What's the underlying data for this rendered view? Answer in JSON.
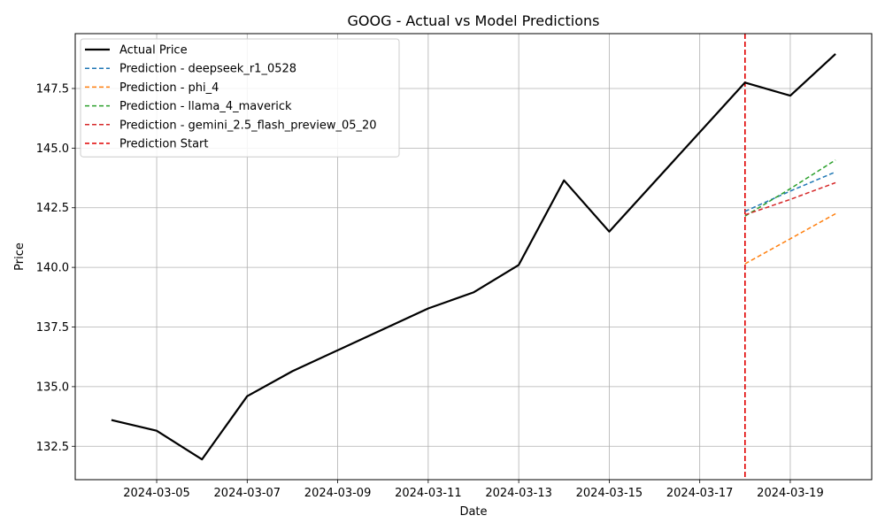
{
  "chart_data": {
    "type": "line",
    "title": "GOOG - Actual vs Model Predictions",
    "xlabel": "Date",
    "ylabel": "Price",
    "x_ticks": [
      "2024-03-05",
      "2024-03-07",
      "2024-03-09",
      "2024-03-11",
      "2024-03-13",
      "2024-03-15",
      "2024-03-17",
      "2024-03-19"
    ],
    "y_ticks": [
      "132.5",
      "135.0",
      "137.5",
      "140.0",
      "142.5",
      "145.0",
      "147.5"
    ],
    "xlim": [
      "2024-03-03",
      "2024-03-20"
    ],
    "ylim": [
      131.1,
      149.8
    ],
    "grid": true,
    "legend_position": "top-left",
    "series": [
      {
        "name": "Actual Price",
        "color": "#000000",
        "style": "solid",
        "x": [
          "2024-03-04",
          "2024-03-05",
          "2024-03-06",
          "2024-03-07",
          "2024-03-08",
          "2024-03-11",
          "2024-03-12",
          "2024-03-13",
          "2024-03-14",
          "2024-03-15",
          "2024-03-18",
          "2024-03-19",
          "2024-03-20"
        ],
        "values": [
          133.6,
          133.15,
          131.95,
          134.6,
          135.65,
          138.28,
          138.95,
          140.1,
          143.65,
          141.5,
          147.75,
          147.2,
          148.95
        ]
      },
      {
        "name": "Prediction - deepseek_r1_0528",
        "color": "#1f77b4",
        "style": "dashed",
        "x": [
          "2024-03-18",
          "2024-03-19",
          "2024-03-20"
        ],
        "values": [
          142.35,
          143.2,
          144.0
        ]
      },
      {
        "name": "Prediction - phi_4",
        "color": "#ff7f0e",
        "style": "dashed",
        "x": [
          "2024-03-18",
          "2024-03-19",
          "2024-03-20"
        ],
        "values": [
          140.15,
          141.2,
          142.25
        ]
      },
      {
        "name": "Prediction - llama_4_maverick",
        "color": "#2ca02c",
        "style": "dashed",
        "x": [
          "2024-03-18",
          "2024-03-19",
          "2024-03-20"
        ],
        "values": [
          142.15,
          143.3,
          144.5
        ]
      },
      {
        "name": "Prediction - gemini_2.5_flash_preview_05_20",
        "color": "#d62728",
        "style": "dashed",
        "x": [
          "2024-03-18",
          "2024-03-19",
          "2024-03-20"
        ],
        "values": [
          142.2,
          142.85,
          143.55
        ]
      }
    ],
    "vline": {
      "name": "Prediction Start",
      "x": "2024-03-18",
      "color": "#e00000",
      "style": "dashed"
    }
  }
}
